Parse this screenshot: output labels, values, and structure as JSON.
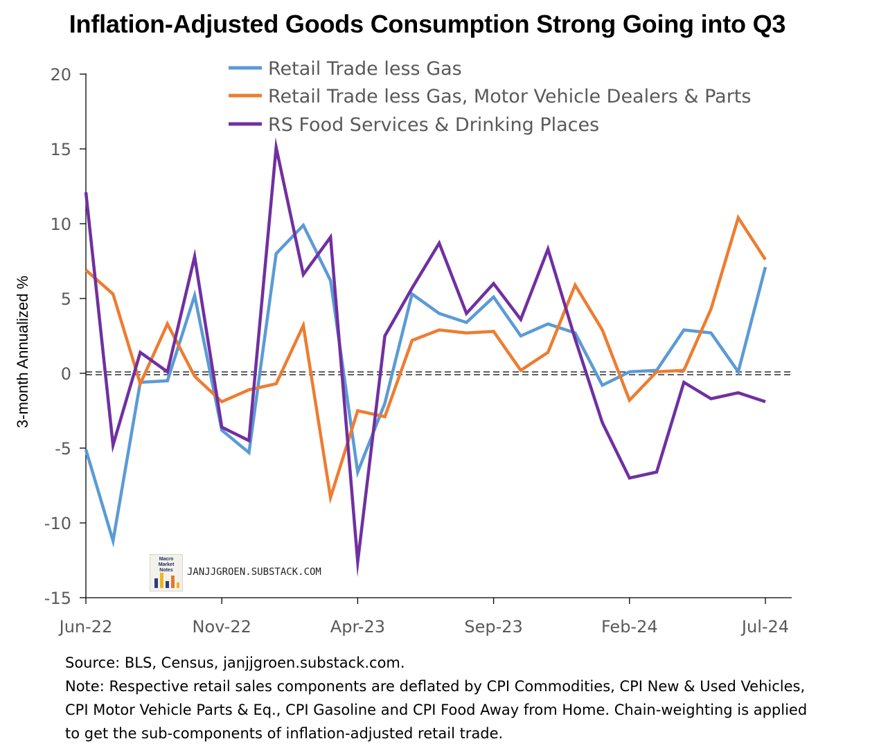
{
  "title": "Inflation-Adjusted Goods Consumption Strong Going into Q3",
  "watermark": {
    "logo_text": "Macro Market Notes",
    "site": "JANJJGROEN.SUBSTACK.COM"
  },
  "notes": {
    "source": "Source: BLS, Census, janjjgroen.substack.com.",
    "note_line1": "Note: Respective retail sales components are deflated by CPI Commodities, CPI New & Used Vehicles,",
    "note_line2": "CPI Motor Vehicle Parts & Eq., CPI Gasoline and CPI Food Away from Home. Chain-weighting is applied",
    "note_line3": "to get the sub-components of inflation-adjusted retail trade."
  },
  "chart_data": {
    "type": "line",
    "ylabel": "3-month Annualized %",
    "ylim": [
      -15,
      20
    ],
    "yticks": [
      20,
      15,
      10,
      5,
      0,
      -5,
      -10,
      -15
    ],
    "xtick_labels": [
      {
        "label": "Jun-22",
        "index": 0
      },
      {
        "label": "Nov-22",
        "index": 5
      },
      {
        "label": "Apr-23",
        "index": 10
      },
      {
        "label": "Sep-23",
        "index": 15
      },
      {
        "label": "Feb-24",
        "index": 20
      },
      {
        "label": "Jul-24",
        "index": 25
      }
    ],
    "x": [
      "Jun-22",
      "Jul-22",
      "Aug-22",
      "Sep-22",
      "Oct-22",
      "Nov-22",
      "Dec-22",
      "Jan-23",
      "Feb-23",
      "Mar-23",
      "Apr-23",
      "May-23",
      "Jun-23",
      "Jul-23",
      "Aug-23",
      "Sep-23",
      "Oct-23",
      "Nov-23",
      "Dec-23",
      "Jan-24",
      "Feb-24",
      "Mar-24",
      "Apr-24",
      "May-24",
      "Jun-24",
      "Jul-24"
    ],
    "zero_line": "dashed",
    "legend_position": "top-center",
    "series": [
      {
        "name": "Retail Trade less Gas",
        "color": "#5B9BD5",
        "values": [
          -5.1,
          -11.2,
          -0.6,
          -0.5,
          5.2,
          -3.8,
          -5.3,
          8.0,
          9.9,
          6.2,
          -6.6,
          -2.0,
          5.3,
          4.0,
          3.4,
          5.1,
          2.5,
          3.3,
          2.7,
          -0.8,
          0.1,
          0.2,
          2.9,
          2.7,
          0.1,
          7.1
        ]
      },
      {
        "name": "Retail Trade less Gas, Motor Vehicle Dealers & Parts",
        "color": "#ED7D31",
        "values": [
          6.9,
          5.3,
          -0.7,
          3.3,
          -0.2,
          -1.9,
          -1.1,
          -0.7,
          3.2,
          -8.3,
          -2.5,
          -2.9,
          2.2,
          2.9,
          2.7,
          2.8,
          0.2,
          1.4,
          5.9,
          2.9,
          -1.8,
          0.1,
          0.2,
          4.3,
          10.4,
          7.6
        ]
      },
      {
        "name": "RS Food Services & Drinking Places",
        "color": "#7030A0",
        "values": [
          12.1,
          -4.8,
          1.4,
          0.1,
          7.8,
          -3.6,
          -4.5,
          15.1,
          6.6,
          9.1,
          -12.6,
          2.5,
          5.7,
          8.7,
          4.0,
          6.0,
          3.6,
          8.3,
          2.3,
          -3.3,
          -7.0,
          -6.6,
          -0.6,
          -1.7,
          -1.3,
          -1.9
        ]
      }
    ]
  }
}
